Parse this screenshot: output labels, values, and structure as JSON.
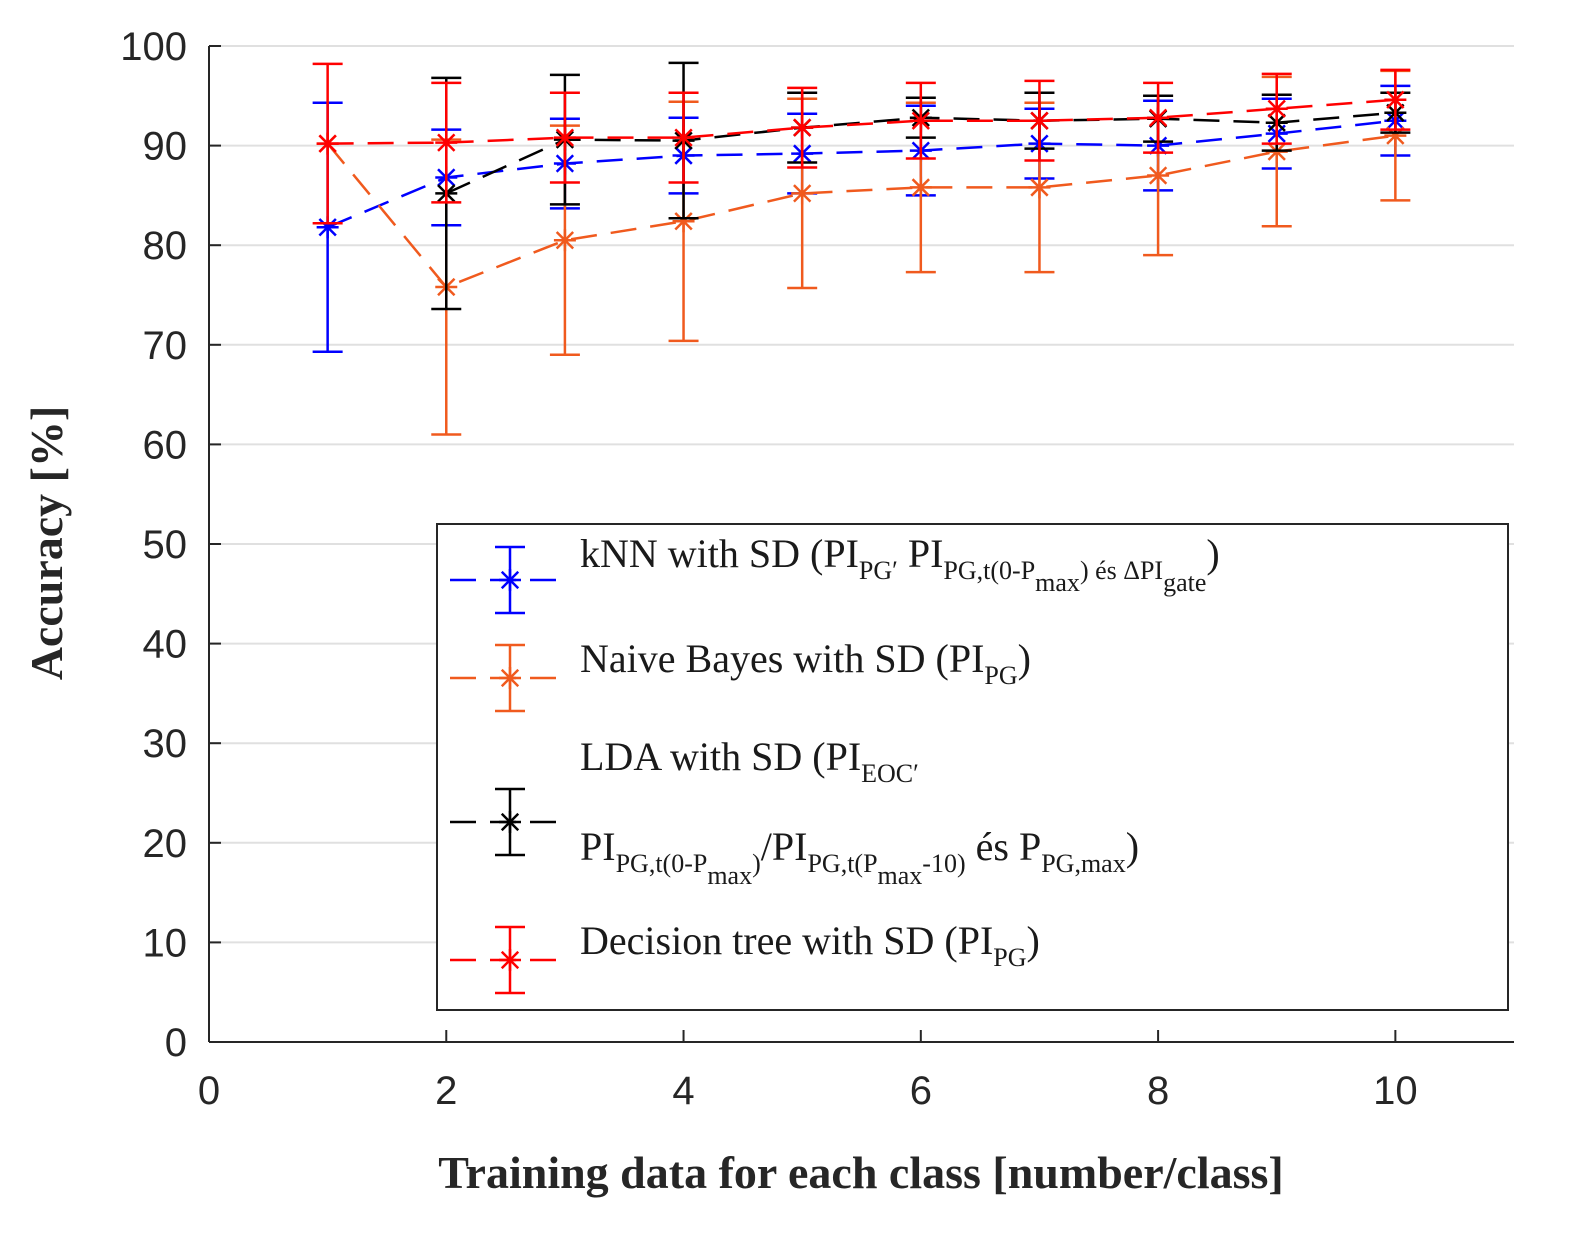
{
  "chart_data": {
    "type": "line",
    "title": "",
    "xlabel": "Training data for each class [number/class]",
    "ylabel": "Accuracy [%]",
    "xlim": [
      0,
      11
    ],
    "ylim": [
      0,
      100
    ],
    "xticks": [
      0,
      2,
      4,
      6,
      8,
      10
    ],
    "yticks": [
      0,
      10,
      20,
      30,
      40,
      50,
      60,
      70,
      80,
      90,
      100
    ],
    "grid": "horizontal",
    "legend_position": "bottom-right",
    "x": [
      1,
      2,
      3,
      4,
      5,
      6,
      7,
      8,
      9,
      10
    ],
    "series": [
      {
        "name": "kNN with SD (PI_PG, PI_PG,t(0-Pmax) és ΔPI_gate)",
        "legend": [
          {
            "t": "kNN with SD (PI"
          },
          {
            "t": "PG′",
            "s": "sub"
          },
          {
            "t": " PI"
          },
          {
            "t": "PG,t(0-P",
            "s": "sub"
          },
          {
            "t": "max",
            "s": "sub2"
          },
          {
            "t": ") és ΔPI",
            "s": "sub"
          },
          {
            "t": "gate",
            "s": "sub2"
          },
          {
            "t": ")"
          }
        ],
        "color": "#0000ff",
        "x": [
          1,
          2,
          3,
          4,
          5,
          6,
          7,
          8,
          9,
          10
        ],
        "values": [
          81.8,
          86.8,
          88.2,
          89.0,
          89.2,
          89.5,
          90.2,
          90.0,
          91.2,
          92.5
        ],
        "sd": [
          12.5,
          4.8,
          4.5,
          3.8,
          4.0,
          4.5,
          3.5,
          4.5,
          3.5,
          3.5
        ]
      },
      {
        "name": "Naive Bayes with SD (PI_PG)",
        "legend": [
          {
            "t": "Naive Bayes with SD (PI"
          },
          {
            "t": "PG",
            "s": "sub"
          },
          {
            "t": ")"
          }
        ],
        "color": "#f05a1e",
        "x": [
          1,
          2,
          3,
          4,
          5,
          6,
          7,
          8,
          9,
          10
        ],
        "values": [
          90.2,
          75.8,
          80.5,
          82.4,
          85.2,
          85.8,
          85.8,
          87.0,
          89.4,
          91.0
        ],
        "sd": [
          0,
          14.8,
          11.5,
          12.0,
          9.5,
          8.5,
          8.5,
          8.0,
          7.5,
          6.5
        ]
      },
      {
        "name": "LDA with SD (PI_EOC, PI_PG,t(0-Pmax)/PI_PG,t(Pmax-10) és P_PG,max)",
        "legend": [
          {
            "t": "LDA with SD (PI"
          },
          {
            "t": "EOC′",
            "s": "sub"
          }
        ],
        "legend2": [
          {
            "t": "PI"
          },
          {
            "t": "PG,t(0-P",
            "s": "sub"
          },
          {
            "t": "max",
            "s": "sub2"
          },
          {
            "t": ")",
            "s": "sub"
          },
          {
            "t": "/PI"
          },
          {
            "t": "PG,t(P",
            "s": "sub"
          },
          {
            "t": "max",
            "s": "sub2"
          },
          {
            "t": "-10)",
            "s": "sub"
          },
          {
            "t": " és P"
          },
          {
            "t": "PG,max",
            "s": "sub"
          },
          {
            "t": ")"
          }
        ],
        "color": "#000000",
        "x": [
          2,
          3,
          4,
          5,
          6,
          7,
          8,
          9,
          10
        ],
        "values": [
          85.2,
          90.6,
          90.5,
          91.8,
          92.8,
          92.5,
          92.7,
          92.3,
          93.3
        ],
        "sd": [
          11.6,
          6.5,
          7.8,
          3.5,
          2.0,
          2.8,
          2.3,
          2.8,
          2.0
        ]
      },
      {
        "name": "Decision tree with SD (PI_PG)",
        "legend": [
          {
            "t": "Decision tree with SD (PI"
          },
          {
            "t": "PG",
            "s": "sub"
          },
          {
            "t": ")"
          }
        ],
        "color": "#ff0000",
        "x": [
          1,
          2,
          3,
          4,
          5,
          6,
          7,
          8,
          9,
          10
        ],
        "values": [
          90.2,
          90.3,
          90.8,
          90.8,
          91.8,
          92.5,
          92.5,
          92.8,
          93.7,
          94.6
        ],
        "sd": [
          8.0,
          6.0,
          4.5,
          4.5,
          4.0,
          3.8,
          4.0,
          3.5,
          3.5,
          3.0
        ]
      }
    ]
  }
}
